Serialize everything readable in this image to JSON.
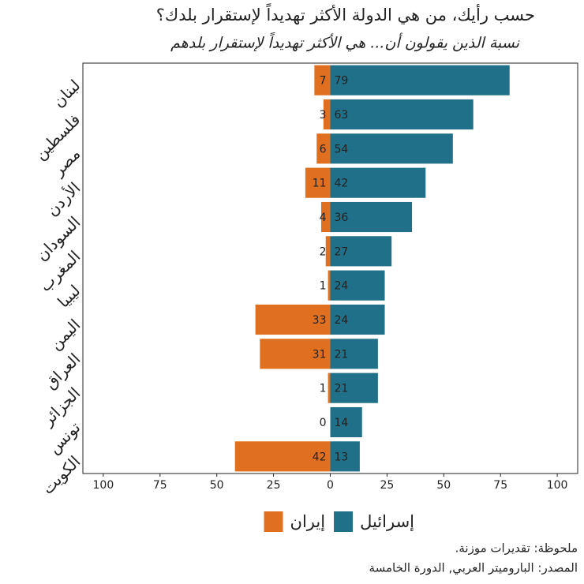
{
  "chart_data": {
    "type": "diverging-bar",
    "title": "حسب رأيك، من هي الدولة الأكثر تهديداً لإستقرار بلدك؟",
    "subtitle": "نسبة الذين يقولون أن... هي الأكثر تهديداً لإستقرار بلدهم",
    "categories": [
      "لبنان",
      "فلسطين",
      "مصر",
      "الأردن",
      "السودان",
      "المغرب",
      "ليبيا",
      "اليمن",
      "العراق",
      "الجزائر",
      "تونس",
      "الكويت"
    ],
    "series": [
      {
        "name": "إسرائيل",
        "color": "#21708a",
        "values": [
          79,
          63,
          54,
          42,
          36,
          27,
          24,
          24,
          21,
          21,
          14,
          13
        ]
      },
      {
        "name": "إيران",
        "color": "#e0701f",
        "values": [
          -7,
          -3,
          -6,
          -11,
          -4,
          -2,
          -1,
          -33,
          -31,
          -1,
          0,
          -42
        ],
        "value_labels": [
          "7",
          "3",
          "6",
          "11",
          "4",
          "2",
          "1",
          "33",
          "31",
          "1",
          "0",
          "42"
        ]
      }
    ],
    "xlim": [
      -109,
      109
    ],
    "xticks": [
      {
        "value": -100,
        "label": "100"
      },
      {
        "value": -75,
        "label": "75"
      },
      {
        "value": -50,
        "label": "50"
      },
      {
        "value": -25,
        "label": "25"
      },
      0,
      25,
      50,
      75,
      100
    ],
    "notes": [
      ".ملحوظة: تقديرات موزنة",
      "المصدر: الباروميتر العربي, الدورة الخامسة"
    ]
  }
}
